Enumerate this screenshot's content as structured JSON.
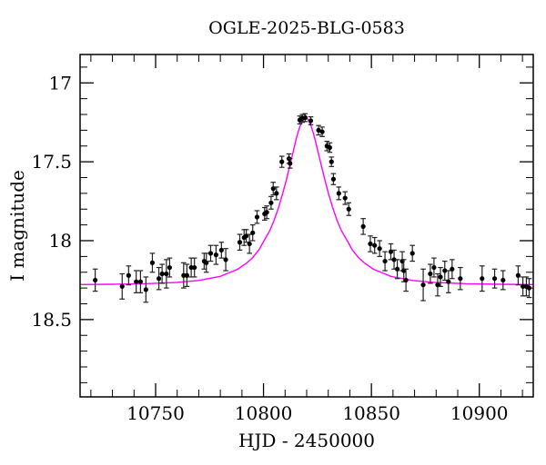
{
  "page": {
    "background": "#ffffff"
  },
  "chart_data": {
    "type": "scatter",
    "title": "OGLE-2025-BLG-0583",
    "xlabel": "HJD - 2450000",
    "ylabel": "I magnitude",
    "xlim": [
      10715,
      10925
    ],
    "ylim": [
      16.82,
      18.99
    ],
    "y_axis_inverted_magnitudes": true,
    "grid": false,
    "legend": "none",
    "x_major_ticks": [
      {
        "value": 10750,
        "label": "10750"
      },
      {
        "value": 10800,
        "label": "10800"
      },
      {
        "value": 10850,
        "label": "10850"
      },
      {
        "value": 10900,
        "label": "10900"
      }
    ],
    "x_minor_tick_step": 10,
    "y_major_ticks": [
      {
        "value": 17.0,
        "label": "17"
      },
      {
        "value": 17.5,
        "label": "17.5"
      },
      {
        "value": 18.0,
        "label": "18"
      },
      {
        "value": 18.5,
        "label": "18.5"
      }
    ],
    "y_minor_tick_step": 0.1,
    "colors": {
      "model_curve": "#ff00ff",
      "data_points": "#000000",
      "error_bars": "#222222",
      "frame": "#000000",
      "text": "#000000",
      "background": "#ffffff"
    },
    "model_curve_description": "smooth single-lens microlensing fit, peak I=17.22 at HJD-2450000=10819.5, baseline I=18.28",
    "model_curve": [
      [
        10715.0,
        18.278
      ],
      [
        10730.0,
        18.276
      ],
      [
        10745.0,
        18.273
      ],
      [
        10760.0,
        18.264
      ],
      [
        10770.0,
        18.252
      ],
      [
        10780.0,
        18.226
      ],
      [
        10784.0,
        18.204
      ],
      [
        10788.0,
        18.181
      ],
      [
        10792.0,
        18.144
      ],
      [
        10795.0,
        18.107
      ],
      [
        10798.0,
        18.056
      ],
      [
        10800.0,
        18.006
      ],
      [
        10803.0,
        17.934
      ],
      [
        10805.0,
        17.868
      ],
      [
        10807.0,
        17.789
      ],
      [
        10809.0,
        17.696
      ],
      [
        10810.5,
        17.619
      ],
      [
        10812.0,
        17.535
      ],
      [
        10813.5,
        17.45
      ],
      [
        10815.0,
        17.365
      ],
      [
        10816.0,
        17.313
      ],
      [
        10817.0,
        17.271
      ],
      [
        10818.5,
        17.23
      ],
      [
        10819.5,
        17.222
      ],
      [
        10820.5,
        17.23
      ],
      [
        10822.0,
        17.271
      ],
      [
        10823.0,
        17.313
      ],
      [
        10824.0,
        17.365
      ],
      [
        10825.5,
        17.45
      ],
      [
        10827.0,
        17.535
      ],
      [
        10828.5,
        17.619
      ],
      [
        10830.0,
        17.696
      ],
      [
        10832.0,
        17.789
      ],
      [
        10834.0,
        17.868
      ],
      [
        10836.0,
        17.934
      ],
      [
        10839.0,
        18.006
      ],
      [
        10841.0,
        18.056
      ],
      [
        10844.0,
        18.107
      ],
      [
        10847.0,
        18.144
      ],
      [
        10851.0,
        18.181
      ],
      [
        10855.0,
        18.204
      ],
      [
        10859.0,
        18.226
      ],
      [
        10869.0,
        18.252
      ],
      [
        10879.0,
        18.264
      ],
      [
        10894.0,
        18.273
      ],
      [
        10909.0,
        18.276
      ],
      [
        10925.0,
        18.278
      ]
    ],
    "points_columns": [
      "hjd_minus_2450000",
      "i_magnitude",
      "mag_error"
    ],
    "points": [
      [
        10722.0,
        18.25,
        0.07
      ],
      [
        10734.5,
        18.29,
        0.08
      ],
      [
        10737.5,
        18.22,
        0.06
      ],
      [
        10741.0,
        18.26,
        0.07
      ],
      [
        10743.0,
        18.26,
        0.07
      ],
      [
        10745.5,
        18.31,
        0.08
      ],
      [
        10748.5,
        18.14,
        0.06
      ],
      [
        10751.5,
        18.24,
        0.07
      ],
      [
        10753.0,
        18.21,
        0.06
      ],
      [
        10755.0,
        18.21,
        0.09
      ],
      [
        10756.5,
        18.17,
        0.06
      ],
      [
        10763.0,
        18.22,
        0.08
      ],
      [
        10764.5,
        18.22,
        0.07
      ],
      [
        10766.5,
        18.17,
        0.06
      ],
      [
        10768.0,
        18.17,
        0.06
      ],
      [
        10772.5,
        18.13,
        0.05
      ],
      [
        10773.5,
        18.14,
        0.06
      ],
      [
        10775.5,
        18.08,
        0.05
      ],
      [
        10778.0,
        18.09,
        0.06
      ],
      [
        10780.5,
        18.06,
        0.05
      ],
      [
        10782.5,
        18.12,
        0.07
      ],
      [
        10789.0,
        18.01,
        0.05
      ],
      [
        10791.0,
        17.98,
        0.05
      ],
      [
        10792.0,
        17.97,
        0.04
      ],
      [
        10793.5,
        18.02,
        0.06
      ],
      [
        10795.0,
        17.95,
        0.05
      ],
      [
        10797.0,
        17.85,
        0.04
      ],
      [
        10800.5,
        17.83,
        0.04
      ],
      [
        10801.5,
        17.82,
        0.04
      ],
      [
        10803.5,
        17.76,
        0.04
      ],
      [
        10804.5,
        17.67,
        0.04
      ],
      [
        10806.0,
        17.7,
        0.04
      ],
      [
        10808.5,
        17.5,
        0.035
      ],
      [
        10811.8,
        17.48,
        0.03
      ],
      [
        10812.3,
        17.51,
        0.03
      ],
      [
        10816.8,
        17.235,
        0.025
      ],
      [
        10818.0,
        17.225,
        0.025
      ],
      [
        10819.3,
        17.22,
        0.025
      ],
      [
        10821.9,
        17.24,
        0.025
      ],
      [
        10825.5,
        17.3,
        0.03
      ],
      [
        10827.2,
        17.31,
        0.03
      ],
      [
        10829.4,
        17.4,
        0.03
      ],
      [
        10830.7,
        17.41,
        0.03
      ],
      [
        10831.5,
        17.5,
        0.03
      ],
      [
        10832.4,
        17.61,
        0.035
      ],
      [
        10834.9,
        17.7,
        0.04
      ],
      [
        10837.8,
        17.73,
        0.04
      ],
      [
        10839.5,
        17.8,
        0.04
      ],
      [
        10846.2,
        17.91,
        0.05
      ],
      [
        10849.5,
        18.02,
        0.05
      ],
      [
        10851.5,
        18.03,
        0.05
      ],
      [
        10853.8,
        18.05,
        0.05
      ],
      [
        10856.3,
        18.13,
        0.06
      ],
      [
        10859.0,
        18.07,
        0.05
      ],
      [
        10860.5,
        18.12,
        0.06
      ],
      [
        10862.0,
        18.18,
        0.06
      ],
      [
        10864.3,
        18.13,
        0.06
      ],
      [
        10865.0,
        18.19,
        0.07
      ],
      [
        10866.0,
        18.25,
        0.07
      ],
      [
        10869.0,
        18.08,
        0.05
      ],
      [
        10874.0,
        18.28,
        0.1
      ],
      [
        10877.3,
        18.21,
        0.06
      ],
      [
        10879.0,
        18.17,
        0.06
      ],
      [
        10880.7,
        18.28,
        0.07
      ],
      [
        10882.0,
        18.23,
        0.06
      ],
      [
        10884.0,
        18.19,
        0.06
      ],
      [
        10885.7,
        18.26,
        0.07
      ],
      [
        10887.4,
        18.18,
        0.06
      ],
      [
        10891.2,
        18.24,
        0.07
      ],
      [
        10901.3,
        18.24,
        0.08
      ],
      [
        10907.1,
        18.24,
        0.06
      ],
      [
        10911.0,
        18.25,
        0.06
      ],
      [
        10918.0,
        18.22,
        0.06
      ],
      [
        10920.2,
        18.29,
        0.06
      ],
      [
        10921.8,
        18.29,
        0.06
      ],
      [
        10923.1,
        18.3,
        0.06
      ]
    ]
  }
}
